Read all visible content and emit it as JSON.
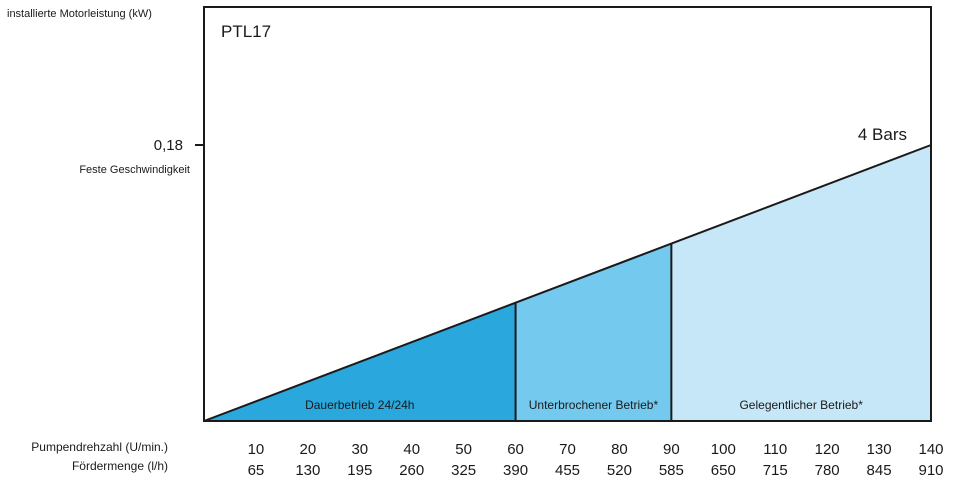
{
  "chart_data": {
    "type": "area",
    "title": "PTL17",
    "ylabel": "installierte Motorleistung (kW)",
    "x_axis_rows": [
      {
        "label": "Pumpendrehzahl (U/min.)",
        "ticks": [
          "10",
          "20",
          "30",
          "40",
          "50",
          "60",
          "70",
          "80",
          "90",
          "100",
          "110",
          "120",
          "130",
          "140"
        ]
      },
      {
        "label": "Fördermenge (l/h)",
        "ticks": [
          "65",
          "130",
          "195",
          "260",
          "325",
          "390",
          "455",
          "520",
          "585",
          "650",
          "715",
          "780",
          "845",
          "910"
        ]
      }
    ],
    "xlim": [
      0,
      140
    ],
    "ylim": [
      0,
      0.27
    ],
    "y_tick": {
      "value": 0.18,
      "label": "0,18",
      "sublabel": "Feste Geschwindigkeit"
    },
    "series": [
      {
        "name": "4 Bars",
        "x": [
          0,
          140
        ],
        "y": [
          0,
          0.18
        ]
      }
    ],
    "zones": [
      {
        "label": "Dauerbetrieb 24/24h",
        "x_start": 0,
        "x_end": 60,
        "color": "#2aa7dc"
      },
      {
        "label": "Unterbrochener Betrieb*",
        "x_start": 60,
        "x_end": 90,
        "color": "#74c9ee"
      },
      {
        "label": "Gelegentlicher Betrieb*",
        "x_start": 90,
        "x_end": 140,
        "color": "#c6e7f7"
      }
    ],
    "grid": false,
    "legend": "none"
  }
}
